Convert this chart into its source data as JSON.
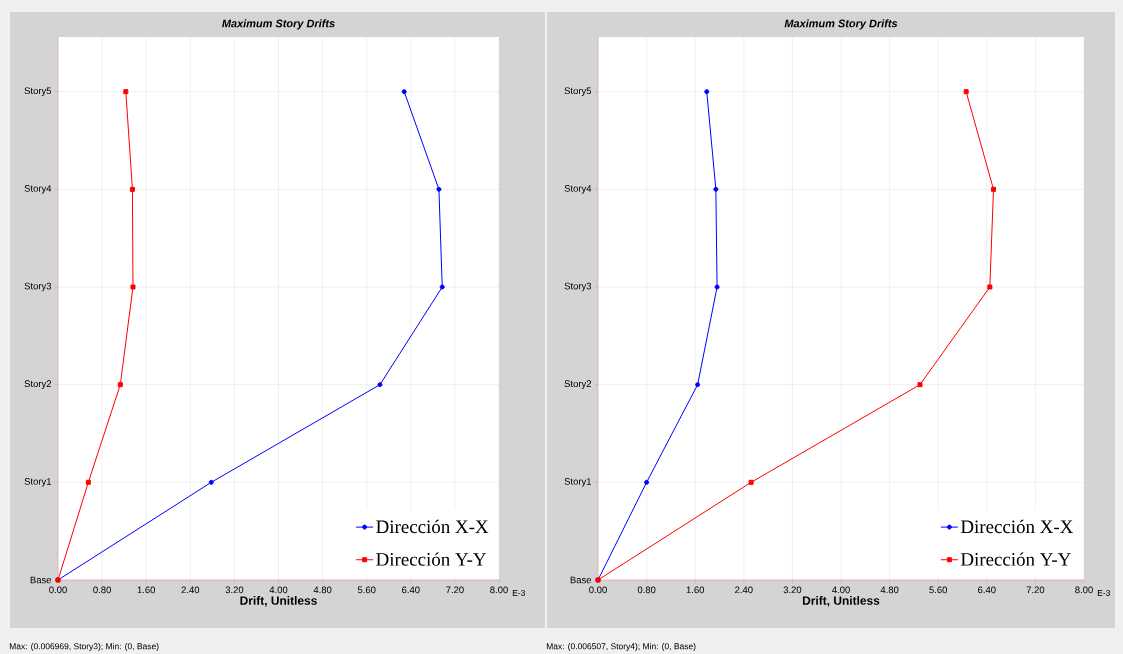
{
  "chart_data": [
    {
      "type": "line",
      "orientation": "horizontal",
      "title": "Maximum Story Drifts",
      "xlabel": "Drift, Unitless",
      "categories": [
        "Story5",
        "Story4",
        "Story3",
        "Story2",
        "Story1",
        "Base"
      ],
      "series": [
        {
          "name": "Dirección X-X",
          "color": "#0000ff",
          "marker": "circle",
          "values": [
            6.28,
            6.91,
            6.97,
            5.84,
            2.78,
            0
          ]
        },
        {
          "name": "Dirección Y-Y",
          "color": "#ff0000",
          "marker": "square",
          "values": [
            1.23,
            1.35,
            1.36,
            1.13,
            0.55,
            0
          ]
        }
      ],
      "xlim": [
        0,
        8
      ],
      "xticks": [
        {
          "value": 0,
          "label": "0.00"
        },
        {
          "value": 0.8,
          "label": "0.80"
        },
        {
          "value": 1.6,
          "label": "1.60"
        },
        {
          "value": 2.4,
          "label": "2.40"
        },
        {
          "value": 3.2,
          "label": "3.20"
        },
        {
          "value": 4,
          "label": "4.00"
        },
        {
          "value": 4.8,
          "label": "4.80"
        },
        {
          "value": 5.6,
          "label": "5.60"
        },
        {
          "value": 6.4,
          "label": "6.40"
        },
        {
          "value": 7.2,
          "label": "7.20"
        },
        {
          "value": 8,
          "label": "8.00"
        }
      ],
      "grid": true,
      "legend": "bottom right",
      "annotations": [
        "E-3",
        "Max: (0.006969, Story3);   Min: (0, Base)"
      ]
    },
    {
      "type": "line",
      "orientation": "horizontal",
      "title": "Maximum Story Drifts",
      "xlabel": "Drift, Unitless",
      "categories": [
        "Story5",
        "Story4",
        "Story3",
        "Story2",
        "Story1",
        "Base"
      ],
      "series": [
        {
          "name": "Dirección X-X",
          "color": "#0000ff",
          "marker": "circle",
          "values": [
            1.79,
            1.94,
            1.96,
            1.64,
            0.8,
            0
          ]
        },
        {
          "name": "Dirección Y-Y",
          "color": "#ff0000",
          "marker": "square",
          "values": [
            6.06,
            6.51,
            6.45,
            5.3,
            2.52,
            0
          ]
        }
      ],
      "xlim": [
        0,
        8
      ],
      "xticks": [
        {
          "value": 0,
          "label": "0.00"
        },
        {
          "value": 0.8,
          "label": "0.80"
        },
        {
          "value": 1.6,
          "label": "1.60"
        },
        {
          "value": 2.4,
          "label": "2.40"
        },
        {
          "value": 3.2,
          "label": "3.20"
        },
        {
          "value": 4,
          "label": "4.00"
        },
        {
          "value": 4.8,
          "label": "4.80"
        },
        {
          "value": 5.6,
          "label": "5.60"
        },
        {
          "value": 6.4,
          "label": "6.40"
        },
        {
          "value": 7.2,
          "label": "7.20"
        },
        {
          "value": 8,
          "label": "8.00"
        }
      ],
      "grid": true,
      "legend": "bottom right",
      "annotations": [
        "E-3",
        "Max: (0.006507, Story4);   Min: (0, Base)"
      ]
    }
  ]
}
